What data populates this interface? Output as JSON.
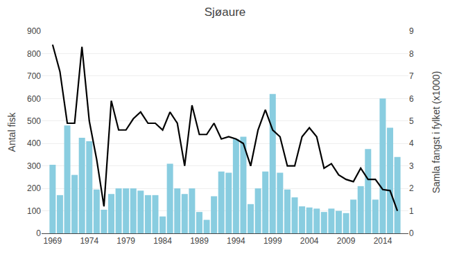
{
  "chart_data": {
    "type": "bar",
    "title": "Sjøaure",
    "x": [
      1969,
      1970,
      1971,
      1972,
      1973,
      1974,
      1975,
      1976,
      1977,
      1978,
      1979,
      1980,
      1981,
      1982,
      1983,
      1984,
      1985,
      1986,
      1987,
      1988,
      1989,
      1990,
      1991,
      1992,
      1993,
      1994,
      1995,
      1996,
      1997,
      1998,
      1999,
      2000,
      2001,
      2002,
      2003,
      2004,
      2005,
      2006,
      2007,
      2008,
      2009,
      2010,
      2011,
      2012,
      2013,
      2014,
      2015,
      2016
    ],
    "series": [
      {
        "type": "bar",
        "color": "#89CDE0",
        "values": [
          305,
          170,
          480,
          260,
          425,
          410,
          195,
          105,
          175,
          200,
          200,
          200,
          190,
          170,
          170,
          75,
          310,
          200,
          175,
          200,
          95,
          60,
          165,
          275,
          270,
          420,
          430,
          130,
          200,
          275,
          620,
          270,
          195,
          160,
          120,
          115,
          110,
          95,
          110,
          100,
          90,
          150,
          210,
          375,
          150,
          600,
          470,
          340
        ]
      },
      {
        "type": "line",
        "color": "#000000",
        "axis": "y2",
        "values": [
          8.4,
          7.2,
          4.9,
          4.9,
          8.3,
          5.0,
          3.3,
          1.2,
          5.9,
          4.6,
          4.6,
          5.1,
          5.4,
          4.9,
          4.9,
          4.6,
          5.4,
          4.9,
          3.0,
          5.7,
          4.4,
          4.4,
          4.9,
          4.2,
          4.3,
          4.2,
          4.0,
          3.0,
          4.6,
          5.5,
          4.6,
          4.3,
          3.0,
          3.0,
          4.3,
          4.7,
          4.3,
          2.9,
          3.1,
          2.6,
          2.4,
          2.3,
          2.9,
          2.4,
          2.4,
          1.95,
          1.9,
          1.0
        ]
      }
    ],
    "ylabel": "Antal fisk",
    "y2label": "Samla fangst i fylket (x1000)",
    "xlim": [
      1967.5,
      2017.5
    ],
    "xticks": [
      1969,
      1974,
      1979,
      1984,
      1989,
      1994,
      1999,
      2004,
      2009,
      2014
    ],
    "ylim": [
      0,
      900
    ],
    "yticks": [
      0,
      100,
      200,
      300,
      400,
      500,
      600,
      700,
      800,
      900
    ],
    "y2lim": [
      0,
      9
    ],
    "y2ticks": [
      0,
      1,
      2,
      3,
      4,
      5,
      6,
      7,
      8,
      9
    ],
    "grid": true
  }
}
